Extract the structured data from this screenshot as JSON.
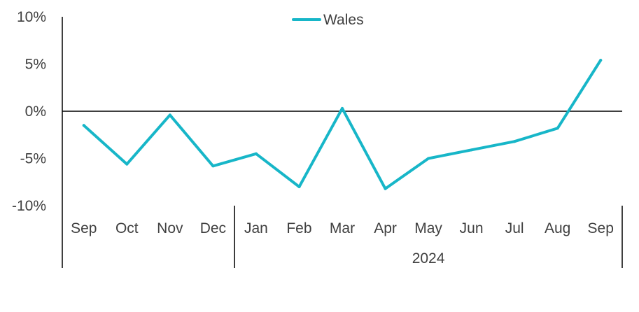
{
  "chart_data": {
    "type": "line",
    "title": "",
    "xlabel": "",
    "ylabel": "",
    "categories": [
      "Sep",
      "Oct",
      "Nov",
      "Dec",
      "Jan",
      "Feb",
      "Mar",
      "Apr",
      "May",
      "Jun",
      "Jul",
      "Aug",
      "Sep"
    ],
    "groups": [
      {
        "label": "",
        "span": [
          0,
          3
        ]
      },
      {
        "label": "2024",
        "span": [
          4,
          12
        ]
      }
    ],
    "yticks": [
      "10%",
      "5%",
      "0%",
      "-5%",
      "-10%"
    ],
    "ytick_values": [
      10,
      5,
      0,
      -5,
      -10
    ],
    "ylim": [
      -10,
      10
    ],
    "grid": false,
    "legend": "top-center",
    "series": [
      {
        "name": "Wales",
        "color": "#17B6C8",
        "values": [
          -1.5,
          -5.6,
          -0.4,
          -5.8,
          -4.5,
          -8.0,
          0.3,
          -8.2,
          -5.0,
          -4.1,
          -3.2,
          -1.8,
          5.4
        ]
      }
    ]
  }
}
